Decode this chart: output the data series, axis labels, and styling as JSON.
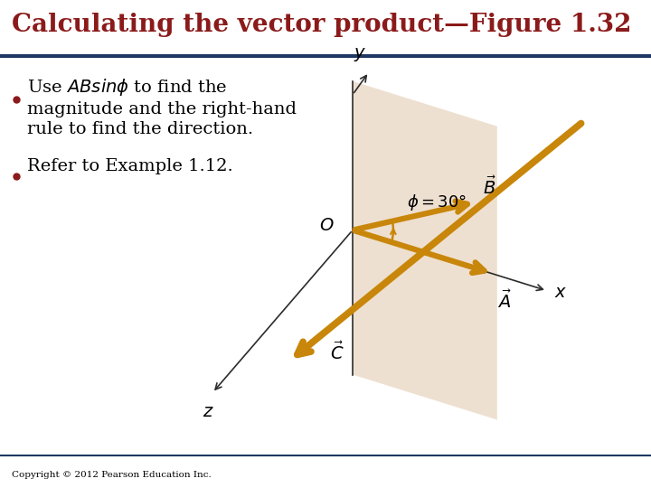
{
  "title": "Calculating the vector product—Figure 1.32",
  "title_color": "#8B1A1A",
  "title_fontsize": 20,
  "bg_color": "#FFFFFF",
  "header_line_color": "#1F3864",
  "bullet1_text": "Use $ABsin\\phi$ to find the\nmagnitude and the right-hand\nrule to find the direction.",
  "bullet2_text": "Refer to Example 1.12.",
  "bullet_color": "#8B1A1A",
  "text_color": "#000000",
  "copyright": "Copyright © 2012 Pearson Education Inc.",
  "arrow_color": "#C8860A",
  "axis_color": "#2C2C2C",
  "plane_color": "#EEE0D0",
  "text_fontsize": 14
}
